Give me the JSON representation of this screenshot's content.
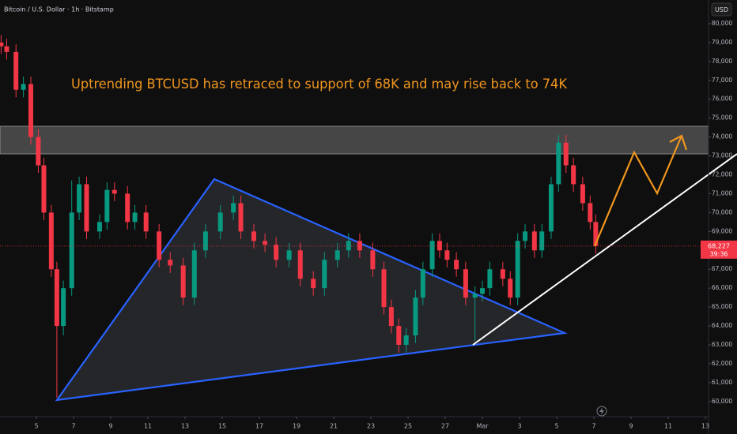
{
  "chart_data": {
    "type": "candlestick",
    "symbol": "Bitcoin / U.S. Dollar · 1h · Bitstamp",
    "currency": "USD",
    "annotation": "Uptrending BTCUSD has retraced to support of 68K and may rise back to 74K",
    "up_color": "#089981",
    "down_color": "#f23645",
    "grid": false,
    "x": [
      3.1,
      3.4,
      3.9,
      4.3,
      4.7,
      5.1,
      5.4,
      5.8,
      6.1,
      6.45,
      6.9,
      7.3,
      7.7,
      8.4,
      8.8,
      9.2,
      9.9,
      10.3,
      10.9,
      11.6,
      12.2,
      12.9,
      13.5,
      14.1,
      14.9,
      15.6,
      16.0,
      16.7,
      17.3,
      17.9,
      18.6,
      19.2,
      19.9,
      20.5,
      21.2,
      21.8,
      22.4,
      23.1,
      23.7,
      24.1,
      24.5,
      24.9,
      25.4,
      25.8,
      26.3,
      26.7,
      27.1,
      27.6,
      28.1,
      28.6,
      29.0,
      29.4,
      30.1,
      30.5,
      30.9,
      31.3,
      31.8,
      32.2,
      32.7,
      33.1,
      33.5,
      33.9,
      34.4,
      34.8,
      35.1
    ],
    "open": [
      79000,
      78800,
      78500,
      76500,
      76800,
      74000,
      72500,
      70000,
      67000,
      64000,
      66000,
      70000,
      71500,
      69000,
      69500,
      71200,
      71000,
      69500,
      70000,
      69000,
      67500,
      67200,
      65500,
      68000,
      69000,
      70000,
      70500,
      69000,
      68500,
      68300,
      67500,
      68000,
      66500,
      66000,
      67500,
      68000,
      68500,
      68000,
      67000,
      65000,
      64000,
      63000,
      63500,
      65500,
      67000,
      68500,
      68000,
      67500,
      67000,
      65500,
      65700,
      66000,
      67000,
      66500,
      65500,
      68500,
      69000,
      68000,
      69000,
      71500,
      73700,
      72500,
      71500,
      70500,
      69500
    ],
    "high": [
      79400,
      79200,
      78900,
      77200,
      77200,
      74400,
      72900,
      70400,
      67400,
      66400,
      71700,
      71900,
      71900,
      69900,
      71600,
      71600,
      71400,
      70400,
      70400,
      69400,
      67900,
      67600,
      68400,
      69400,
      70400,
      70900,
      70900,
      69400,
      68900,
      68700,
      68400,
      68400,
      66900,
      67900,
      68400,
      68900,
      68900,
      68400,
      67400,
      65400,
      64400,
      63900,
      65900,
      67400,
      68900,
      68900,
      68400,
      67900,
      67400,
      66100,
      66400,
      67400,
      67400,
      66900,
      68900,
      69400,
      69400,
      69400,
      71900,
      74100,
      74100,
      72900,
      71900,
      70900,
      69900
    ],
    "low": [
      78400,
      78100,
      76100,
      76100,
      73600,
      72100,
      69600,
      66600,
      60200,
      63500,
      65600,
      69600,
      68600,
      68600,
      69100,
      70600,
      69100,
      69100,
      68600,
      67100,
      66800,
      65100,
      65100,
      67600,
      68600,
      69600,
      68600,
      68100,
      67900,
      67100,
      67100,
      66100,
      65600,
      65600,
      67100,
      67600,
      67600,
      66600,
      64600,
      63600,
      62600,
      62600,
      63100,
      65100,
      66600,
      67600,
      67100,
      66600,
      65100,
      63200,
      65300,
      65600,
      66100,
      65100,
      65100,
      68100,
      67600,
      67600,
      68600,
      71100,
      72100,
      71100,
      70100,
      69100,
      67800
    ],
    "close": [
      78800,
      78500,
      76500,
      76800,
      74000,
      72500,
      70000,
      67000,
      64000,
      66000,
      70000,
      71500,
      69000,
      69500,
      71200,
      71000,
      69500,
      70000,
      69000,
      67500,
      67200,
      65500,
      68000,
      69000,
      70000,
      70500,
      69000,
      68500,
      68300,
      67500,
      68000,
      66500,
      66000,
      67500,
      68000,
      68500,
      68000,
      67000,
      65000,
      64000,
      63000,
      63500,
      65500,
      67000,
      68500,
      68000,
      67500,
      67000,
      65500,
      65700,
      66000,
      67000,
      66500,
      65500,
      68500,
      69000,
      68000,
      69000,
      71500,
      73700,
      72500,
      71500,
      70500,
      69500,
      68227
    ],
    "last_price": {
      "value": 68227,
      "label": "68,227"
    },
    "countdown": "39:36",
    "xlim": [
      3.04,
      41.17
    ],
    "ylim": [
      59200,
      81250
    ],
    "xticks": [
      5,
      7,
      9,
      11,
      13,
      15,
      17,
      19,
      21,
      23,
      25,
      27,
      {
        "value": 29,
        "label": "Mar"
      },
      {
        "value": 31,
        "label": "3"
      },
      {
        "value": 33,
        "label": "5"
      },
      {
        "value": 35,
        "label": "7"
      },
      {
        "value": 37,
        "label": "9"
      },
      {
        "value": 39,
        "label": "11"
      },
      {
        "value": 41,
        "label": "13"
      }
    ],
    "yticks": [
      {
        "value": 60000,
        "label": "60,000"
      },
      {
        "value": 61000,
        "label": "61,000"
      },
      {
        "value": 62000,
        "label": "62,000"
      },
      {
        "value": 63000,
        "label": "63,000"
      },
      {
        "value": 64000,
        "label": "64,000"
      },
      {
        "value": 65000,
        "label": "65,000"
      },
      {
        "value": 66000,
        "label": "66,000"
      },
      {
        "value": 67000,
        "label": "67,000"
      },
      {
        "value": 68000,
        "label": "68,000"
      },
      {
        "value": 69000,
        "label": "69,000"
      },
      {
        "value": 70000,
        "label": "70,000"
      },
      {
        "value": 71000,
        "label": "71,000"
      },
      {
        "value": 72000,
        "label": "72,000"
      },
      {
        "value": 73000,
        "label": "73,000"
      },
      {
        "value": 74000,
        "label": "74,000"
      },
      {
        "value": 75000,
        "label": "75,000"
      },
      {
        "value": 76000,
        "label": "76,000"
      },
      {
        "value": 77000,
        "label": "77,000"
      },
      {
        "value": 78000,
        "label": "78,000"
      },
      {
        "value": 79000,
        "label": "79,000"
      },
      {
        "value": 80000,
        "label": "80,000"
      }
    ]
  }
}
